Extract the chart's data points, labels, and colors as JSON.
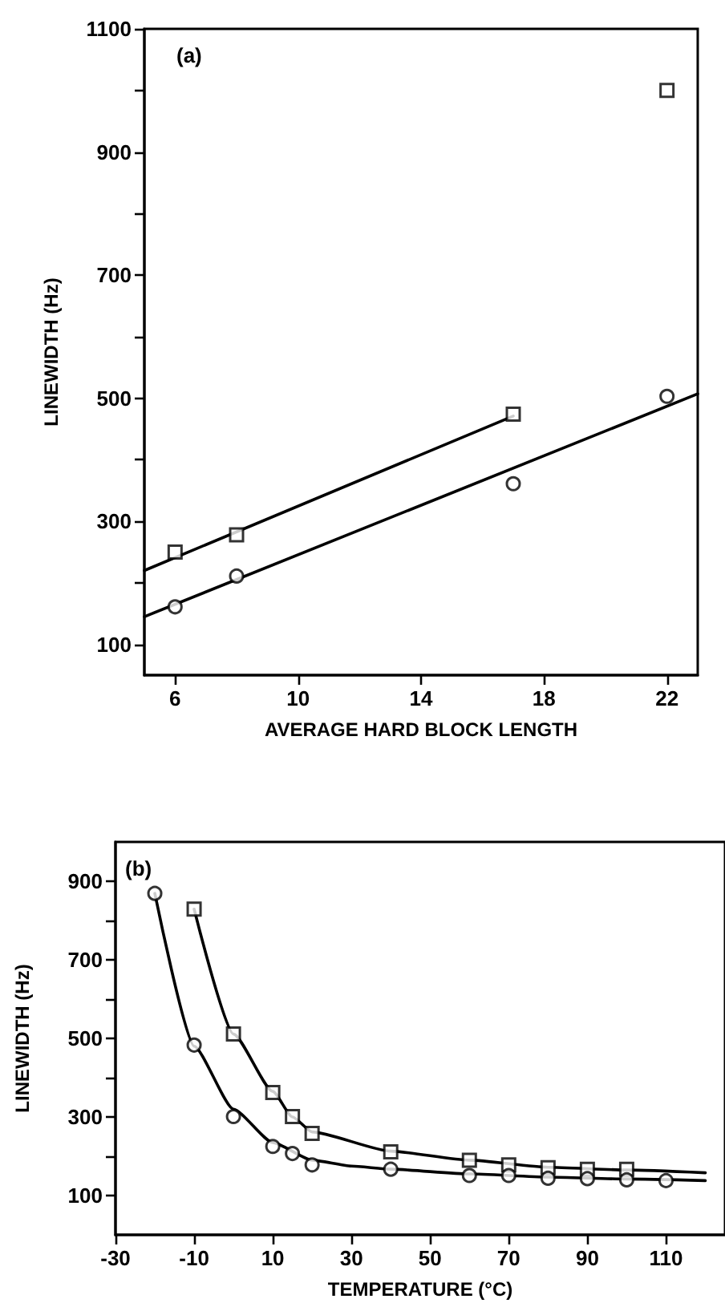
{
  "chart_data": [
    {
      "type": "scatter",
      "xlabel": "AVERAGE HARD BLOCK LENGTH",
      "ylabel": "LINEWIDTH (Hz)",
      "annotations": [
        "(a)"
      ],
      "xlim": [
        5,
        23
      ],
      "xticks": [
        6,
        10,
        14,
        18,
        22
      ],
      "ylim": [
        50,
        1100
      ],
      "yticks": [
        100,
        {
          "value": 200,
          "label": null
        },
        300,
        {
          "value": 400,
          "label": null
        },
        500,
        {
          "value": 600,
          "label": null
        },
        700,
        {
          "value": 800,
          "label": null
        },
        900,
        {
          "value": 1000,
          "label": null
        },
        1100
      ],
      "series": [
        {
          "marker": "square",
          "color": "#000000",
          "x": [
            6,
            8,
            17,
            22
          ],
          "values": [
            250,
            278,
            474,
            1000
          ]
        },
        {
          "marker": "circle",
          "color": "#000000",
          "x": [
            6,
            8,
            17,
            22
          ],
          "values": [
            161,
            211,
            361,
            503
          ]
        },
        {
          "type": "line",
          "marker": "none",
          "color": "#000000",
          "x": [
            5,
            17
          ],
          "values": [
            220,
            471
          ]
        },
        {
          "type": "line",
          "marker": "none",
          "color": "#000000",
          "x": [
            5,
            23
          ],
          "values": [
            145,
            507
          ]
        }
      ]
    },
    {
      "type": "scatter",
      "xlabel": "TEMPERATURE (°C)",
      "ylabel": "LINEWIDTH (Hz)",
      "annotations": [
        "(b)"
      ],
      "xlim": [
        -30,
        125
      ],
      "xticks": [
        -30,
        -10,
        10,
        30,
        50,
        70,
        90,
        110
      ],
      "ylim": [
        0,
        1000
      ],
      "yticks": [
        100,
        {
          "value": 200,
          "label": null
        },
        300,
        {
          "value": 400,
          "label": null
        },
        500,
        {
          "value": 600,
          "label": null
        },
        700,
        {
          "value": 800,
          "label": null
        },
        900
      ],
      "series": [
        {
          "marker": "square",
          "color": "#000000",
          "x": [
            -10,
            0,
            10,
            15,
            20,
            40,
            60,
            70,
            80,
            90,
            100
          ],
          "values": [
            829,
            511,
            362,
            301,
            258,
            211,
            190,
            178,
            171,
            167,
            167
          ]
        },
        {
          "marker": "circle",
          "color": "#000000",
          "x": [
            -20,
            -10,
            0,
            10,
            15,
            20,
            40,
            60,
            70,
            80,
            90,
            100,
            110
          ],
          "values": [
            869,
            483,
            301,
            225,
            207,
            178,
            167,
            151,
            151,
            144,
            143,
            140,
            138
          ]
        },
        {
          "type": "line",
          "marker": "none",
          "color": "#000000",
          "x": [
            -10,
            0,
            10,
            15,
            20,
            40,
            60,
            80,
            100,
            120
          ],
          "values": [
            829,
            511,
            365,
            300,
            262,
            213,
            190,
            172,
            165,
            158
          ]
        },
        {
          "type": "line",
          "marker": "none",
          "color": "#000000",
          "x": [
            -20,
            -10,
            0,
            10,
            20,
            30,
            40,
            60,
            80,
            100,
            120
          ],
          "values": [
            869,
            480,
            320,
            235,
            190,
            175,
            167,
            155,
            147,
            142,
            138
          ]
        }
      ]
    }
  ]
}
